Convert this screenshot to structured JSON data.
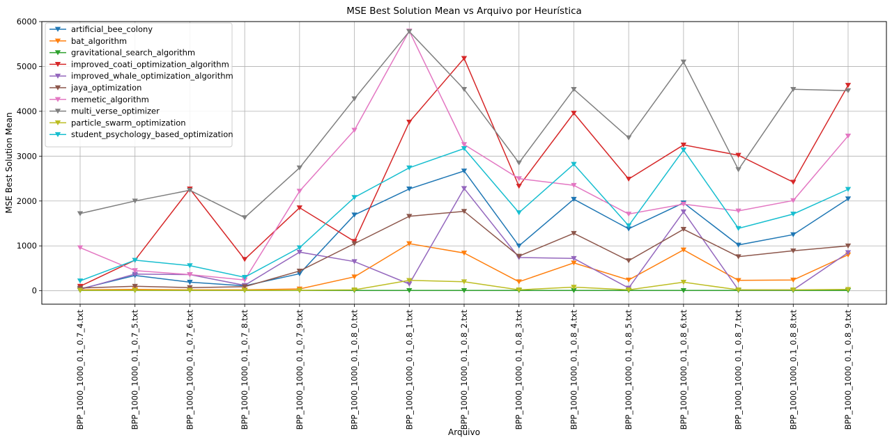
{
  "chart_data": {
    "type": "line",
    "title": "MSE Best Solution Mean vs Arquivo por Heurística",
    "xlabel": "Arquivo",
    "ylabel": "MSE Best Solution Mean",
    "ylim": [
      -300,
      6000
    ],
    "yticks": [
      0,
      1000,
      2000,
      3000,
      4000,
      5000,
      6000
    ],
    "grid": true,
    "legend": "top-left",
    "marker": "triangle-down",
    "categories": [
      "BPP_1000_1000_0.1_0.7_4.txt",
      "BPP_1000_1000_0.1_0.7_5.txt",
      "BPP_1000_1000_0.1_0.7_6.txt",
      "BPP_1000_1000_0.1_0.7_8.txt",
      "BPP_1000_1000_0.1_0.7_9.txt",
      "BPP_1000_1000_0.1_0.8_0.txt",
      "BPP_1000_1000_0.1_0.8_1.txt",
      "BPP_1000_1000_0.1_0.8_2.txt",
      "BPP_1000_1000_0.1_0.8_3.txt",
      "BPP_1000_1000_0.1_0.8_4.txt",
      "BPP_1000_1000_0.1_0.8_5.txt",
      "BPP_1000_1000_0.1_0.8_6.txt",
      "BPP_1000_1000_0.1_0.8_7.txt",
      "BPP_1000_1000_0.1_0.8_8.txt",
      "BPP_1000_1000_0.1_0.8_9.txt"
    ],
    "series": [
      {
        "name": "artificial_bee_colony",
        "color": "#1f77b4",
        "values": [
          40,
          340,
          190,
          110,
          380,
          1690,
          2270,
          2670,
          1000,
          2040,
          1380,
          1960,
          1020,
          1250,
          2050
        ]
      },
      {
        "name": "bat_algorithm",
        "color": "#ff7f0e",
        "values": [
          20,
          30,
          20,
          20,
          40,
          310,
          1050,
          840,
          200,
          620,
          240,
          910,
          230,
          240,
          800
        ]
      },
      {
        "name": "gravitational_search_algorithm",
        "color": "#2ca02c",
        "values": [
          5,
          5,
          5,
          5,
          5,
          5,
          5,
          5,
          5,
          5,
          5,
          5,
          5,
          5,
          5
        ]
      },
      {
        "name": "improved_coati_optimization_algorithm",
        "color": "#d62728",
        "values": [
          100,
          680,
          2270,
          700,
          1850,
          1100,
          3760,
          5180,
          2330,
          3960,
          2490,
          3250,
          3020,
          2420,
          4580
        ]
      },
      {
        "name": "improved_whale_optimization_algorithm",
        "color": "#9467bd",
        "values": [
          30,
          370,
          360,
          120,
          860,
          650,
          150,
          2280,
          740,
          720,
          60,
          1760,
          20,
          20,
          850
        ]
      },
      {
        "name": "jaya_optimization",
        "color": "#8c564b",
        "values": [
          60,
          100,
          70,
          90,
          440,
          1050,
          1660,
          1770,
          770,
          1280,
          670,
          1370,
          760,
          890,
          1000
        ]
      },
      {
        "name": "memetic_algorithm",
        "color": "#e377c2",
        "values": [
          960,
          450,
          360,
          240,
          2220,
          3580,
          5790,
          3260,
          2500,
          2350,
          1710,
          1930,
          1780,
          2010,
          3450
        ]
      },
      {
        "name": "multi_verse_optimizer",
        "color": "#7f7f7f",
        "values": [
          1720,
          2000,
          2240,
          1630,
          2740,
          4280,
          5780,
          4490,
          2850,
          4490,
          3410,
          5100,
          2700,
          4490,
          4460
        ]
      },
      {
        "name": "particle_swarm_optimization",
        "color": "#bcbd22",
        "values": [
          10,
          10,
          10,
          10,
          10,
          20,
          230,
          200,
          20,
          80,
          20,
          190,
          20,
          20,
          30
        ]
      },
      {
        "name": "student_psychology_based_optimization",
        "color": "#17becf",
        "values": [
          220,
          680,
          560,
          300,
          960,
          2080,
          2740,
          3170,
          1740,
          2820,
          1450,
          3140,
          1390,
          1710,
          2260
        ]
      }
    ]
  }
}
